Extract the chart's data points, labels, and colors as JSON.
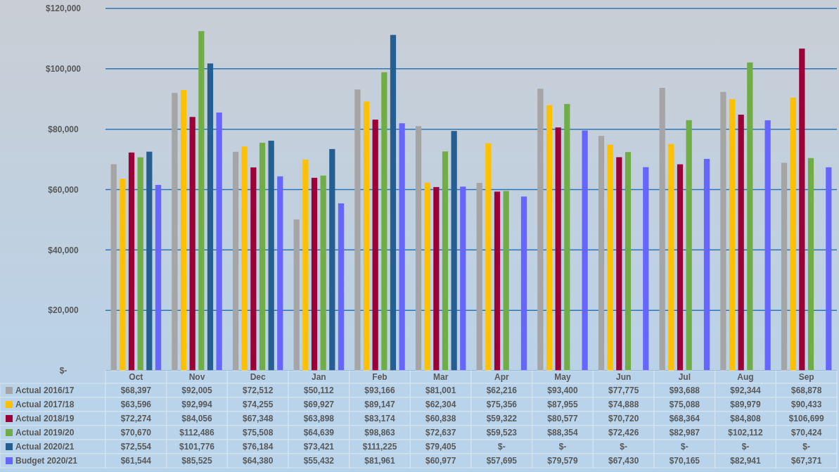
{
  "chart_data": {
    "type": "bar",
    "categories": [
      "Oct",
      "Nov",
      "Dec",
      "Jan",
      "Feb",
      "Mar",
      "Apr",
      "May",
      "Jun",
      "Jul",
      "Aug",
      "Sep"
    ],
    "series": [
      {
        "name": "Actual 2016/17",
        "color": "#a5a5a5",
        "values": [
          68397,
          92005,
          72512,
          50112,
          93166,
          81001,
          62216,
          93400,
          77775,
          93688,
          92344,
          68878
        ],
        "value_labels": [
          "$68,397",
          "$92,005",
          "$72,512",
          "$50,112",
          "$93,166",
          "$81,001",
          "$62,216",
          "$93,400",
          "$77,775",
          "$93,688",
          "$92,344",
          "$68,878"
        ]
      },
      {
        "name": "Actual 2017/18",
        "color": "#ffc000",
        "values": [
          63596,
          92994,
          74255,
          69927,
          89147,
          62304,
          75356,
          87955,
          74888,
          75088,
          89979,
          90433
        ],
        "value_labels": [
          "$63,596",
          "$92,994",
          "$74,255",
          "$69,927",
          "$89,147",
          "$62,304",
          "$75,356",
          "$87,955",
          "$74,888",
          "$75,088",
          "$89,979",
          "$90,433"
        ]
      },
      {
        "name": "Actual 2018/19",
        "color": "#9b0037",
        "values": [
          72274,
          84056,
          67348,
          63898,
          83174,
          60838,
          59322,
          80577,
          70720,
          68364,
          84808,
          106699
        ],
        "value_labels": [
          "$72,274",
          "$84,056",
          "$67,348",
          "$63,898",
          "$83,174",
          "$60,838",
          "$59,322",
          "$80,577",
          "$70,720",
          "$68,364",
          "$84,808",
          "$106,699"
        ]
      },
      {
        "name": "Actual 2019/20",
        "color": "#70ad47",
        "values": [
          70670,
          112486,
          75508,
          64639,
          98863,
          72637,
          59523,
          88354,
          72426,
          82987,
          102112,
          70424
        ],
        "value_labels": [
          "$70,670",
          "$112,486",
          "$75,508",
          "$64,639",
          "$98,863",
          "$72,637",
          "$59,523",
          "$88,354",
          "$72,426",
          "$82,987",
          "$102,112",
          "$70,424"
        ]
      },
      {
        "name": "Actual 2020/21",
        "color": "#255e91",
        "values": [
          72554,
          101776,
          76184,
          73421,
          111225,
          79405,
          null,
          null,
          null,
          null,
          null,
          null
        ],
        "value_labels": [
          "$72,554",
          "$101,776",
          "$76,184",
          "$73,421",
          "$111,225",
          "$79,405",
          "$-",
          "$-",
          "$-",
          "$-",
          "$-",
          "$-"
        ]
      },
      {
        "name": "Budget 2020/21",
        "color": "#6666ff",
        "values": [
          61544,
          85525,
          64380,
          55432,
          81961,
          60977,
          57695,
          79579,
          67430,
          70165,
          82941,
          67371
        ],
        "value_labels": [
          "$61,544",
          "$85,525",
          "$64,380",
          "$55,432",
          "$81,961",
          "$60,977",
          "$57,695",
          "$79,579",
          "$67,430",
          "$70,165",
          "$82,941",
          "$67,371"
        ]
      }
    ],
    "ylim": [
      0,
      120000
    ],
    "yticks": [
      {
        "value": 0,
        "label": "$-"
      },
      {
        "value": 20000,
        "label": "$20,000"
      },
      {
        "value": 40000,
        "label": "$40,000"
      },
      {
        "value": 60000,
        "label": "$60,000"
      },
      {
        "value": 80000,
        "label": "$80,000"
      },
      {
        "value": 100000,
        "label": "$100,000"
      },
      {
        "value": 120000,
        "label": "$120,000"
      }
    ],
    "grid": "y",
    "legend": "bottom"
  }
}
